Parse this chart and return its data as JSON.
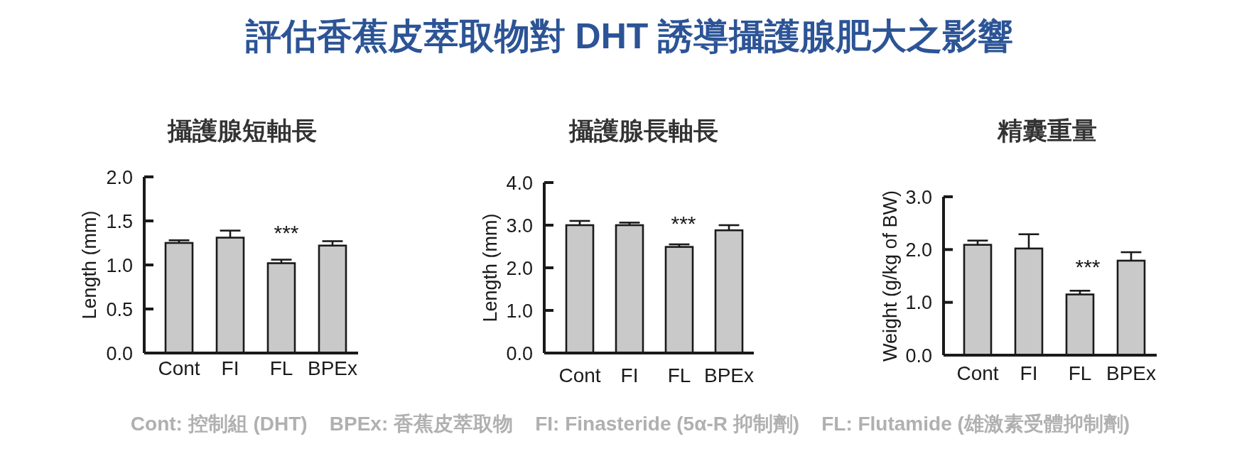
{
  "chart_data": [
    {
      "type": "bar",
      "title": "攝護腺短軸長",
      "ylabel": "Length (mm)",
      "categories": [
        "Cont",
        "FI",
        "FL",
        "BPEx"
      ],
      "values": [
        1.25,
        1.31,
        1.02,
        1.22
      ],
      "errors": [
        0.03,
        0.08,
        0.04,
        0.05
      ],
      "color": "#c9c9c9",
      "ylim": [
        0,
        2
      ],
      "yticks": [
        {
          "value": 0,
          "label": "0.0"
        },
        0.5,
        {
          "value": 1,
          "label": "1.0"
        },
        1.5,
        {
          "value": 2,
          "label": "2.0"
        }
      ],
      "annotations": [
        "評估香蕉皮萃取物對 DHT 誘導攝護腺肥大之影響",
        "***"
      ]
    },
    {
      "type": "bar",
      "title": "攝護腺長軸長",
      "ylabel": "Length (mm)",
      "categories": [
        "Cont",
        "FI",
        "FL",
        "BPEx"
      ],
      "values": [
        3.0,
        3.0,
        2.49,
        2.88
      ],
      "errors": [
        0.1,
        0.06,
        0.06,
        0.12
      ],
      "color": "#c9c9c9",
      "ylim": [
        0,
        4
      ],
      "yticks": [
        {
          "value": 0,
          "label": "0.0"
        },
        {
          "value": 1,
          "label": "1.0"
        },
        {
          "value": 2,
          "label": "2.0"
        },
        {
          "value": 3,
          "label": "3.0"
        },
        {
          "value": 4,
          "label": "4.0"
        }
      ],
      "annotations": [
        "***"
      ]
    },
    {
      "type": "bar",
      "title": "精囊重量",
      "ylabel": "Weight (g/kg of BW)",
      "categories": [
        "Cont",
        "FI",
        "FL",
        "BPEx"
      ],
      "values": [
        2.09,
        2.02,
        1.15,
        1.79
      ],
      "errors": [
        0.08,
        0.27,
        0.07,
        0.16
      ],
      "color": "#c9c9c9",
      "ylim": [
        0,
        3
      ],
      "yticks": [
        {
          "value": 0,
          "label": "0.0"
        },
        {
          "value": 1,
          "label": "1.0"
        },
        {
          "value": 2,
          "label": "2.0"
        },
        {
          "value": 3,
          "label": "3.0"
        }
      ],
      "annotations": [
        "***",
        "Cont: 控制組 (DHT)    BPEx: 香蕉皮萃取物    FI: Finasteride (5α-R 抑制劑)    FL: Flutamide (雄激素受體抑制劑)"
      ]
    }
  ]
}
